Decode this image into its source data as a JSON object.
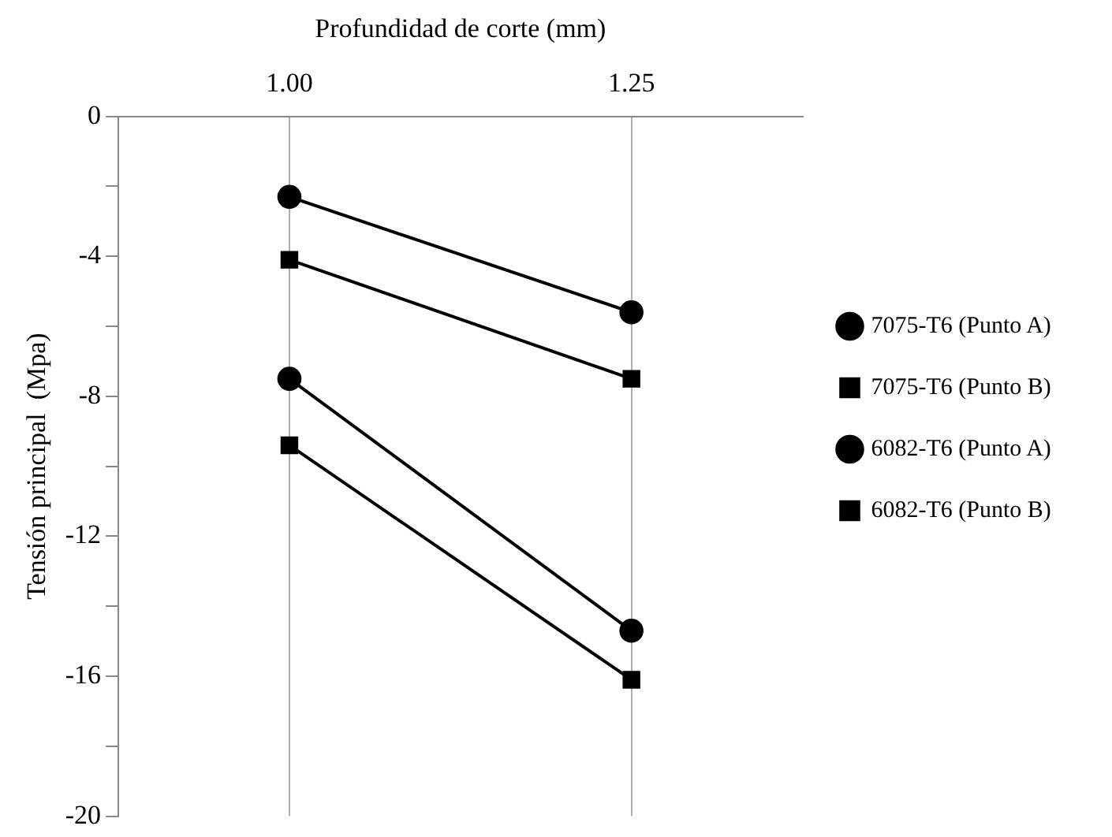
{
  "chart_data": {
    "type": "line",
    "xlabel": "Profundidad de corte (mm)",
    "ylabel": "Tensión principal  (Mpa)",
    "categories": [
      "1.00",
      "1.25"
    ],
    "series": [
      {
        "name": "7075-T6 (Punto A)",
        "color": "#000000",
        "marker": "circle",
        "values": [
          -2.3,
          -5.6
        ]
      },
      {
        "name": "7075-T6 (Punto B)",
        "color": "#000000",
        "marker": "square",
        "values": [
          -4.1,
          -7.5
        ]
      },
      {
        "name": "6082-T6 (Punto A)",
        "color": "#000000",
        "marker": "circle",
        "values": [
          -7.5,
          -14.7
        ]
      },
      {
        "name": "6082-T6 (Punto B)",
        "color": "#000000",
        "marker": "square",
        "values": [
          -9.4,
          -16.1
        ]
      }
    ],
    "ylim": [
      -20,
      0
    ],
    "yticks": [
      0,
      {
        "value": -2,
        "label": null
      },
      -4,
      {
        "value": -6,
        "label": null
      },
      -8,
      {
        "value": -10,
        "label": null
      },
      -12,
      {
        "value": -14,
        "label": null
      },
      -16,
      {
        "value": -18,
        "label": null
      },
      -20
    ],
    "grid": "x",
    "legend": "right",
    "line_style": "solid"
  }
}
